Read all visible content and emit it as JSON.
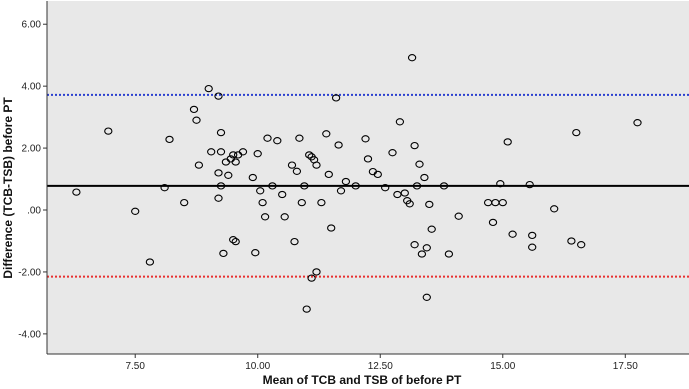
{
  "chart_data": {
    "type": "scatter",
    "xlabel": "Mean of TCB and TSB of before PT",
    "ylabel": "Difference (TCB-TSB) before PT",
    "xlim": [
      5.7,
      18.8
    ],
    "ylim": [
      -4.65,
      6.75
    ],
    "x_ticks": [
      7.5,
      10.0,
      12.5,
      15.0,
      17.5
    ],
    "x_tick_labels": [
      "7.50",
      "10.00",
      "12.50",
      "15.00",
      "17.50"
    ],
    "y_ticks": [
      6.0,
      4.0,
      2.0,
      0.0,
      -2.0,
      -4.0
    ],
    "y_tick_labels": [
      "6.00",
      "4.00",
      "2.00",
      ".00",
      "-2.00",
      "-4.00"
    ],
    "grid": false,
    "plot_background": "#e8e8e8",
    "marker_color": "#000000",
    "reference_lines": [
      {
        "y": 3.72,
        "color": "#2a3fcf",
        "style": "dotted"
      },
      {
        "y": 0.78,
        "color": "#000000",
        "style": "solid"
      },
      {
        "y": -2.15,
        "color": "#e83030",
        "style": "dotted"
      }
    ],
    "points": [
      [
        6.3,
        0.58
      ],
      [
        6.95,
        2.55
      ],
      [
        7.5,
        -0.04
      ],
      [
        7.8,
        -1.68
      ],
      [
        8.1,
        0.72
      ],
      [
        8.2,
        2.28
      ],
      [
        8.5,
        0.24
      ],
      [
        8.7,
        3.25
      ],
      [
        8.75,
        2.9
      ],
      [
        8.8,
        1.45
      ],
      [
        9.0,
        3.92
      ],
      [
        9.05,
        1.88
      ],
      [
        9.2,
        3.68
      ],
      [
        9.2,
        1.2
      ],
      [
        9.2,
        0.38
      ],
      [
        9.25,
        1.88
      ],
      [
        9.25,
        0.78
      ],
      [
        9.25,
        2.5
      ],
      [
        9.3,
        -1.4
      ],
      [
        9.35,
        1.55
      ],
      [
        9.4,
        1.12
      ],
      [
        9.45,
        1.65
      ],
      [
        9.5,
        1.78
      ],
      [
        9.5,
        -0.96
      ],
      [
        9.55,
        1.55
      ],
      [
        9.55,
        -1.02
      ],
      [
        9.6,
        1.78
      ],
      [
        9.7,
        1.88
      ],
      [
        9.9,
        1.05
      ],
      [
        9.95,
        -1.38
      ],
      [
        10.0,
        1.82
      ],
      [
        10.05,
        0.62
      ],
      [
        10.1,
        0.24
      ],
      [
        10.15,
        -0.22
      ],
      [
        10.2,
        2.32
      ],
      [
        10.3,
        0.78
      ],
      [
        10.4,
        2.24
      ],
      [
        10.5,
        0.5
      ],
      [
        10.55,
        -0.22
      ],
      [
        10.7,
        1.45
      ],
      [
        10.75,
        -1.02
      ],
      [
        10.8,
        1.25
      ],
      [
        10.85,
        2.32
      ],
      [
        10.9,
        0.24
      ],
      [
        10.95,
        0.78
      ],
      [
        11.0,
        -3.2
      ],
      [
        11.05,
        1.78
      ],
      [
        11.1,
        1.72
      ],
      [
        11.1,
        -2.2
      ],
      [
        11.15,
        1.62
      ],
      [
        11.2,
        -2.0
      ],
      [
        11.2,
        1.45
      ],
      [
        11.3,
        0.24
      ],
      [
        11.4,
        2.46
      ],
      [
        11.45,
        1.15
      ],
      [
        11.5,
        -0.58
      ],
      [
        11.6,
        3.62
      ],
      [
        11.65,
        2.1
      ],
      [
        11.7,
        0.62
      ],
      [
        11.8,
        0.92
      ],
      [
        12.0,
        0.78
      ],
      [
        12.2,
        2.3
      ],
      [
        12.25,
        1.65
      ],
      [
        12.35,
        1.24
      ],
      [
        12.45,
        1.15
      ],
      [
        12.6,
        0.72
      ],
      [
        12.75,
        1.85
      ],
      [
        12.85,
        0.5
      ],
      [
        12.9,
        2.85
      ],
      [
        13.0,
        0.55
      ],
      [
        13.05,
        0.3
      ],
      [
        13.1,
        0.2
      ],
      [
        13.15,
        4.92
      ],
      [
        13.2,
        2.08
      ],
      [
        13.2,
        -1.12
      ],
      [
        13.25,
        0.78
      ],
      [
        13.3,
        1.48
      ],
      [
        13.35,
        -1.42
      ],
      [
        13.4,
        1.05
      ],
      [
        13.45,
        -1.22
      ],
      [
        13.45,
        -2.82
      ],
      [
        13.5,
        0.18
      ],
      [
        13.55,
        -0.62
      ],
      [
        13.8,
        0.78
      ],
      [
        13.9,
        -1.42
      ],
      [
        14.1,
        -0.2
      ],
      [
        14.7,
        0.24
      ],
      [
        14.8,
        -0.4
      ],
      [
        14.85,
        0.24
      ],
      [
        14.95,
        0.85
      ],
      [
        15.0,
        0.24
      ],
      [
        15.1,
        2.2
      ],
      [
        15.2,
        -0.78
      ],
      [
        15.55,
        0.82
      ],
      [
        15.6,
        -0.82
      ],
      [
        15.6,
        -1.2
      ],
      [
        16.05,
        0.04
      ],
      [
        16.4,
        -1.0
      ],
      [
        16.5,
        2.5
      ],
      [
        16.6,
        -1.12
      ],
      [
        17.75,
        2.82
      ]
    ]
  }
}
